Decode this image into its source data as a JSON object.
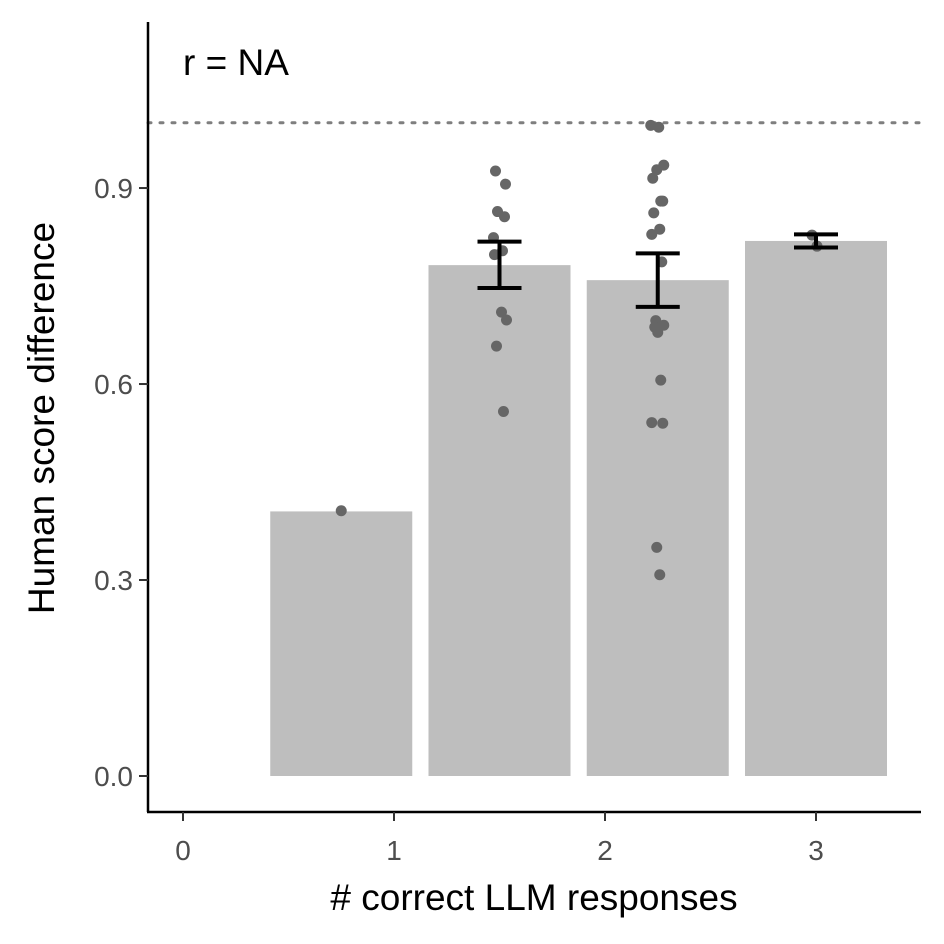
{
  "chart_data": {
    "type": "bar",
    "annotation": "r = NA",
    "xlabel": "# correct LLM responses",
    "ylabel": "Human score difference",
    "x_ticks": [
      "0",
      "1",
      "2",
      "3"
    ],
    "y_ticks": [
      "0.0",
      "0.3",
      "0.6",
      "0.9"
    ],
    "y_tick_values": [
      0.0,
      0.3,
      0.6,
      0.9
    ],
    "ylim": [
      -0.055,
      1.155
    ],
    "reference_line": 1.0,
    "bars": [
      {
        "x": 0.75,
        "value": 0.405
      },
      {
        "x": 1.5,
        "value": 0.782,
        "se_low": 0.747,
        "se_high": 0.818
      },
      {
        "x": 2.25,
        "value": 0.759,
        "se_low": 0.718,
        "se_high": 0.8
      },
      {
        "x": 3.0,
        "value": 0.819,
        "se_low": 0.809,
        "se_high": 0.829
      }
    ],
    "points": [
      {
        "x": 0.75,
        "y": 0.406
      },
      {
        "x": 1.5,
        "y": 0.926
      },
      {
        "x": 1.5,
        "y": 0.906
      },
      {
        "x": 1.5,
        "y": 0.864
      },
      {
        "x": 1.5,
        "y": 0.856
      },
      {
        "x": 1.5,
        "y": 0.824
      },
      {
        "x": 1.5,
        "y": 0.804
      },
      {
        "x": 1.5,
        "y": 0.798
      },
      {
        "x": 1.5,
        "y": 0.71
      },
      {
        "x": 1.5,
        "y": 0.698
      },
      {
        "x": 1.5,
        "y": 0.658
      },
      {
        "x": 1.5,
        "y": 0.558
      },
      {
        "x": 2.25,
        "y": 0.996
      },
      {
        "x": 2.25,
        "y": 0.993
      },
      {
        "x": 2.25,
        "y": 0.935
      },
      {
        "x": 2.25,
        "y": 0.928
      },
      {
        "x": 2.25,
        "y": 0.915
      },
      {
        "x": 2.25,
        "y": 0.88
      },
      {
        "x": 2.25,
        "y": 0.88
      },
      {
        "x": 2.25,
        "y": 0.862
      },
      {
        "x": 2.25,
        "y": 0.837
      },
      {
        "x": 2.25,
        "y": 0.829
      },
      {
        "x": 2.25,
        "y": 0.787
      },
      {
        "x": 2.25,
        "y": 0.697
      },
      {
        "x": 2.25,
        "y": 0.69
      },
      {
        "x": 2.25,
        "y": 0.687
      },
      {
        "x": 2.25,
        "y": 0.679
      },
      {
        "x": 2.25,
        "y": 0.606
      },
      {
        "x": 2.25,
        "y": 0.541
      },
      {
        "x": 2.25,
        "y": 0.54
      },
      {
        "x": 2.25,
        "y": 0.35
      },
      {
        "x": 2.25,
        "y": 0.308
      },
      {
        "x": 3.0,
        "y": 0.828
      },
      {
        "x": 3.0,
        "y": 0.811
      }
    ],
    "colors": {
      "bar": "#bebebe",
      "point": "#666666",
      "errorbar": "#000000",
      "reference_line": "#7f7f7f",
      "axis": "#000000"
    }
  }
}
